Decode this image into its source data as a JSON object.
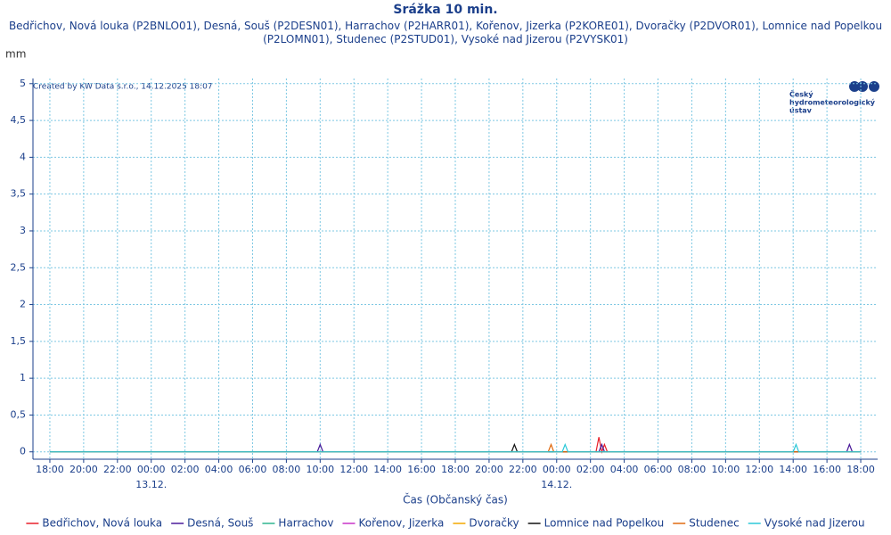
{
  "chart_data": {
    "type": "line",
    "title": "Srážka 10 min.",
    "subtitle": "Bedřichov, Nová louka (P2BNLO01), Desná, Souš (P2DESN01), Harrachov (P2HARR01), Kořenov, Jizerka (P2KORE01), Dvoračky (P2DVOR01), Lomnice nad Popelkou (P2LOMN01), Studenec (P2STUD01), Vysoké nad Jizerou (P2VYSK01)",
    "y_label": "mm",
    "x_label": "Čas (Občanský čas)",
    "annotation": "Created by KW Data s.r.o., 14.12.2025 18:07",
    "logo": [
      "Český",
      "hydrometeorologický",
      "ústav"
    ],
    "xlim": [
      -7,
      43
    ],
    "ylim": [
      -0.1,
      5.07
    ],
    "grid": true,
    "xticks": [
      {
        "value": -6,
        "label": "18:00"
      },
      {
        "value": -4,
        "label": "20:00"
      },
      {
        "value": -2,
        "label": "22:00"
      },
      {
        "value": 0,
        "label": "00:00"
      },
      {
        "value": 2,
        "label": "02:00"
      },
      {
        "value": 4,
        "label": "04:00"
      },
      {
        "value": 6,
        "label": "06:00"
      },
      {
        "value": 8,
        "label": "08:00"
      },
      {
        "value": 10,
        "label": "10:00"
      },
      {
        "value": 12,
        "label": "12:00"
      },
      {
        "value": 14,
        "label": "14:00"
      },
      {
        "value": 16,
        "label": "16:00"
      },
      {
        "value": 18,
        "label": "18:00"
      },
      {
        "value": 20,
        "label": "20:00"
      },
      {
        "value": 22,
        "label": "22:00"
      },
      {
        "value": 24,
        "label": "00:00"
      },
      {
        "value": 26,
        "label": "02:00"
      },
      {
        "value": 28,
        "label": "04:00"
      },
      {
        "value": 30,
        "label": "06:00"
      },
      {
        "value": 32,
        "label": "08:00"
      },
      {
        "value": 34,
        "label": "10:00"
      },
      {
        "value": 36,
        "label": "12:00"
      },
      {
        "value": 38,
        "label": "14:00"
      },
      {
        "value": 40,
        "label": "16:00"
      },
      {
        "value": 42,
        "label": "18:00"
      }
    ],
    "date_labels": [
      {
        "value": 0,
        "label": "13.12."
      },
      {
        "value": 24,
        "label": "14.12."
      }
    ],
    "yticks": [
      0,
      {
        "value": 0.5,
        "label": "0,5"
      },
      1,
      {
        "value": 1.5,
        "label": "1,5"
      },
      2,
      {
        "value": 2.5,
        "label": "2,5"
      },
      3,
      {
        "value": 3.5,
        "label": "3,5"
      },
      4,
      {
        "value": 4.5,
        "label": "4,5"
      },
      5
    ],
    "series": [
      {
        "name": "Bedřichov, Nová louka",
        "color": "#e8202a",
        "x": [
          -6,
          26.33,
          26.5,
          26.67,
          26.83,
          27,
          42
        ],
        "values": [
          0,
          0,
          0.2,
          0,
          0.1,
          0,
          0
        ]
      },
      {
        "name": "Desná, Souš",
        "color": "#4a1a9a",
        "x": [
          -6,
          9.83,
          10,
          10.17,
          26.5,
          26.67,
          26.83,
          41.17,
          41.33,
          41.5,
          42
        ],
        "values": [
          0,
          0,
          0.1,
          0,
          0,
          0.1,
          0,
          0,
          0.1,
          0,
          0
        ]
      },
      {
        "name": "Harrachov",
        "color": "#2fb58f",
        "x": [
          -6,
          42
        ],
        "values": [
          0,
          0
        ]
      },
      {
        "name": "Kořenov, Jizerka",
        "color": "#c832c8",
        "x": [
          -6,
          42
        ],
        "values": [
          0,
          0
        ]
      },
      {
        "name": "Dvoračky",
        "color": "#f2a900",
        "x": [
          -6,
          42
        ],
        "values": [
          0,
          0
        ]
      },
      {
        "name": "Lomnice nad Popelkou",
        "color": "#111111",
        "x": [
          -6,
          21.33,
          21.5,
          21.67,
          42
        ],
        "values": [
          0,
          0,
          0.1,
          0,
          0
        ]
      },
      {
        "name": "Studenec",
        "color": "#e06a10",
        "x": [
          -6,
          23.5,
          23.67,
          23.83,
          42
        ],
        "values": [
          0,
          0,
          0.1,
          0,
          0
        ]
      },
      {
        "name": "Vysoké nad Jizerou",
        "color": "#2cc8d8",
        "x": [
          -6,
          24.33,
          24.5,
          24.67,
          38,
          38.17,
          38.33,
          42
        ],
        "values": [
          0,
          0,
          0.1,
          0,
          0,
          0.1,
          0,
          0
        ]
      }
    ]
  }
}
